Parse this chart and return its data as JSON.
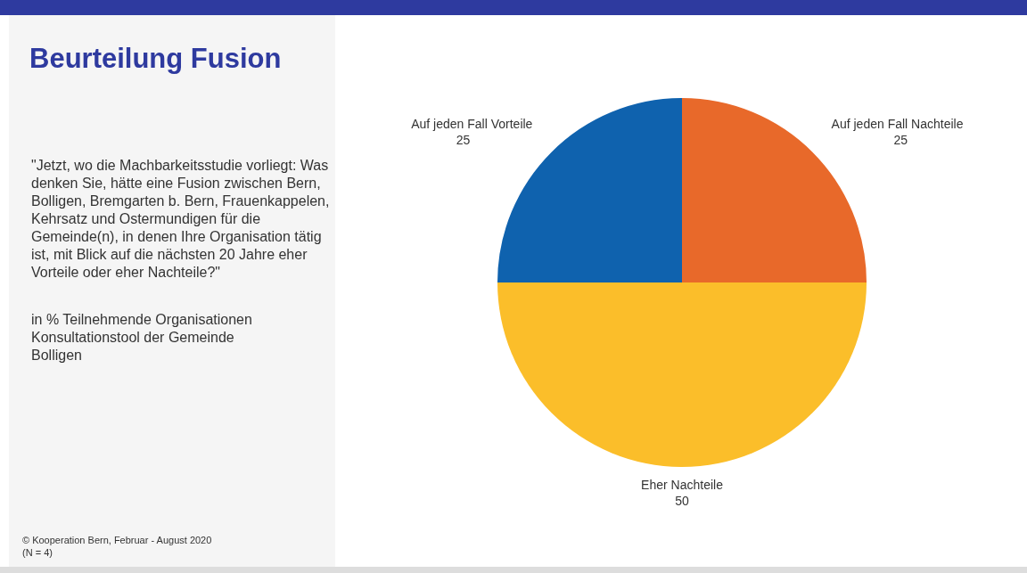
{
  "chart_data": {
    "type": "pie",
    "title": "Beurteilung Fusion",
    "subtitle": "\"Jetzt, wo die Machbarkeitsstudie vorliegt: Was denken Sie, hätte eine Fusion zwischen Bern, Bolligen, Bremgarten b. Bern, Frauenkappelen, Kehrsatz und Ostermundigen für die Gemeinde(n), in denen Ihre Organisation tätig ist, mit Blick auf die nächsten 20 Jahre eher Vorteile oder eher Nachteile?\"",
    "annotations": [
      "in % Teilnehmende Organisationen Konsultationstool der Gemeinde Bolligen",
      "©  Kooperation Bern, Februar - August 2020",
      "(N = 4)"
    ],
    "categories": [
      "Auf jeden Fall Nachteile",
      "Eher Nachteile",
      "Auf jeden Fall Vorteile"
    ],
    "values": [
      25,
      50,
      25
    ],
    "colors": [
      "#e8692a",
      "#fbbe2a",
      "#0f62ae"
    ],
    "data_labels": true,
    "legend": false
  }
}
